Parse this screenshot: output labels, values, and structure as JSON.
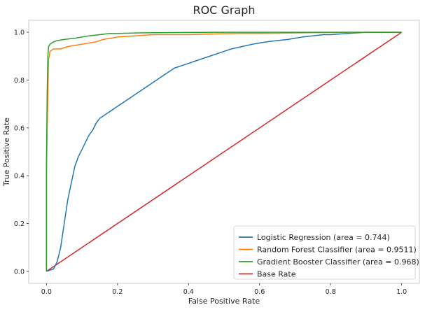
{
  "chart_data": {
    "type": "line",
    "title": "ROC Graph",
    "xlabel": "False Positive Rate",
    "ylabel": "True Positive Rate",
    "xlim": [
      -0.05,
      1.05
    ],
    "ylim": [
      -0.05,
      1.05
    ],
    "xticks": [
      0.0,
      0.2,
      0.4,
      0.6,
      0.8,
      1.0
    ],
    "yticks": [
      0.0,
      0.2,
      0.4,
      0.6,
      0.8,
      1.0
    ],
    "xtick_labels": [
      "0.0",
      "0.2",
      "0.4",
      "0.6",
      "0.8",
      "1.0"
    ],
    "ytick_labels": [
      "0.0",
      "0.2",
      "0.4",
      "0.6",
      "0.8",
      "1.0"
    ],
    "grid": false,
    "legend_position": "lower-right",
    "series": [
      {
        "name": "Logistic Regression (area = 0.744)",
        "color": "#1f77b4",
        "x": [
          0.0,
          0.02,
          0.03,
          0.04,
          0.05,
          0.06,
          0.07,
          0.08,
          0.09,
          0.1,
          0.11,
          0.12,
          0.13,
          0.14,
          0.15,
          0.16,
          0.17,
          0.18,
          0.2,
          0.22,
          0.24,
          0.26,
          0.28,
          0.3,
          0.32,
          0.34,
          0.36,
          0.38,
          0.4,
          0.42,
          0.44,
          0.46,
          0.48,
          0.5,
          0.52,
          0.55,
          0.58,
          0.6,
          0.62,
          0.65,
          0.68,
          0.7,
          0.72,
          0.75,
          0.78,
          0.8,
          0.85,
          0.9,
          0.95,
          1.0
        ],
        "y": [
          0.0,
          0.01,
          0.04,
          0.1,
          0.2,
          0.3,
          0.37,
          0.44,
          0.48,
          0.51,
          0.54,
          0.57,
          0.59,
          0.62,
          0.64,
          0.65,
          0.66,
          0.67,
          0.69,
          0.71,
          0.73,
          0.75,
          0.77,
          0.79,
          0.81,
          0.83,
          0.85,
          0.86,
          0.87,
          0.88,
          0.89,
          0.9,
          0.91,
          0.92,
          0.93,
          0.94,
          0.95,
          0.955,
          0.96,
          0.965,
          0.97,
          0.975,
          0.98,
          0.985,
          0.99,
          0.99,
          0.995,
          1.0,
          1.0,
          1.0
        ]
      },
      {
        "name": "Random Forest Classifier (area = 0.9511)",
        "color": "#ff7f0e",
        "x": [
          0.0,
          0.0,
          0.002,
          0.004,
          0.006,
          0.008,
          0.01,
          0.02,
          0.04,
          0.06,
          0.08,
          0.1,
          0.12,
          0.14,
          0.16,
          0.18,
          0.2,
          0.25,
          0.3,
          0.35,
          0.4,
          0.45,
          0.5,
          0.55,
          0.6,
          0.65,
          0.7,
          0.75,
          0.8,
          0.85,
          0.9,
          1.0
        ],
        "y": [
          0.0,
          0.4,
          0.6,
          0.75,
          0.89,
          0.9,
          0.92,
          0.93,
          0.93,
          0.94,
          0.945,
          0.95,
          0.955,
          0.96,
          0.97,
          0.975,
          0.98,
          0.985,
          0.99,
          0.99,
          0.99,
          0.992,
          0.994,
          0.995,
          0.995,
          0.996,
          0.997,
          0.998,
          0.999,
          1.0,
          1.0,
          1.0
        ]
      },
      {
        "name": "Gradient Booster Classifier (area = 0.968)",
        "color": "#2ca02c",
        "x": [
          0.0,
          0.0,
          0.002,
          0.004,
          0.006,
          0.01,
          0.02,
          0.03,
          0.05,
          0.08,
          0.1,
          0.12,
          0.15,
          0.18,
          0.2,
          0.25,
          0.3,
          0.4,
          0.5,
          0.6,
          0.7,
          0.8,
          0.9,
          1.0
        ],
        "y": [
          0.0,
          0.45,
          0.75,
          0.9,
          0.94,
          0.95,
          0.96,
          0.965,
          0.97,
          0.975,
          0.98,
          0.985,
          0.99,
          0.995,
          0.995,
          0.997,
          0.998,
          0.999,
          1.0,
          1.0,
          1.0,
          1.0,
          1.0,
          1.0
        ]
      },
      {
        "name": "Base Rate",
        "color": "#d62728",
        "x": [
          0.0,
          1.0
        ],
        "y": [
          0.0,
          1.0
        ]
      }
    ]
  }
}
